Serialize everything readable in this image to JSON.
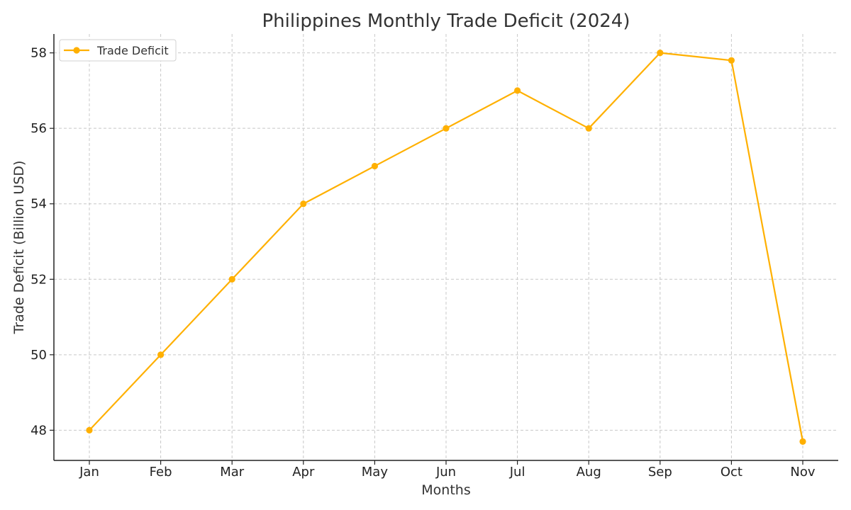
{
  "chart_data": {
    "type": "line",
    "title": "Philippines Monthly Trade Deficit (2024)",
    "xlabel": "Months",
    "ylabel": "Trade Deficit (Billion USD)",
    "categories": [
      "Jan",
      "Feb",
      "Mar",
      "Apr",
      "May",
      "Jun",
      "Jul",
      "Aug",
      "Sep",
      "Oct",
      "Nov"
    ],
    "series": [
      {
        "name": "Trade Deficit",
        "values": [
          48,
          50,
          52,
          54,
          55,
          56,
          57,
          56,
          58,
          57.8,
          47.7
        ],
        "color": "#FFB000",
        "marker": "circle"
      }
    ],
    "ylim": [
      47.2,
      58.5
    ],
    "yticks": [
      48,
      50,
      52,
      54,
      56,
      58
    ],
    "grid": true,
    "legend": "top-left"
  }
}
